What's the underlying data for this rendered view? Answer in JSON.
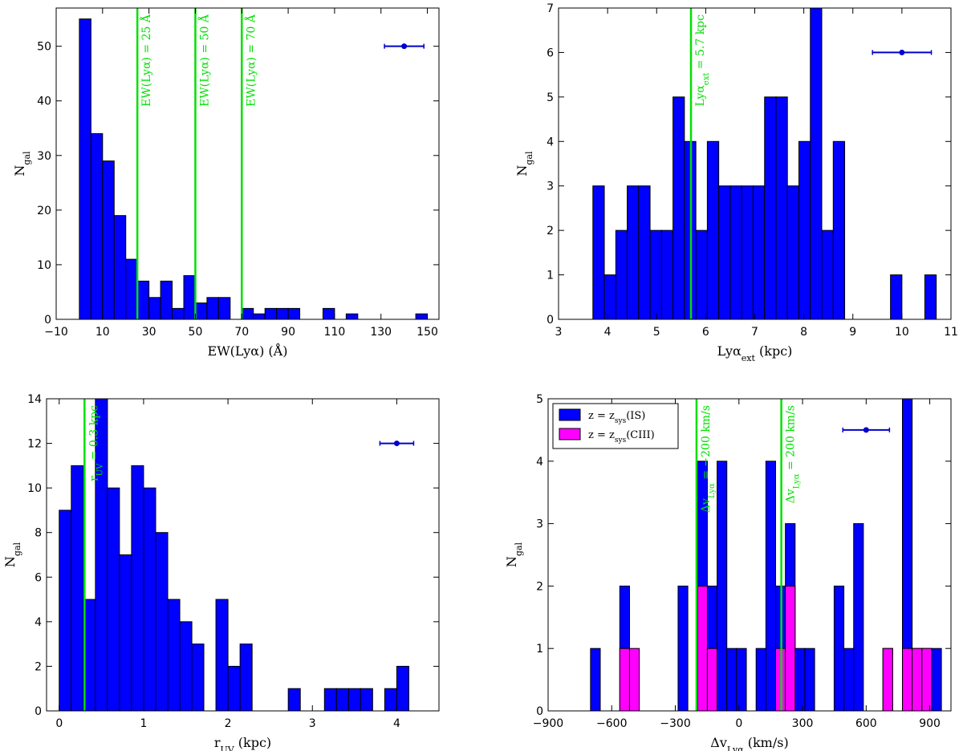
{
  "colors": {
    "bar": "#0000ff",
    "bar_alt": "#ff00ff",
    "vline": "#00e000",
    "errorbar": "#0000cc",
    "edge": "#000000"
  },
  "chart_data": [
    {
      "id": "ew",
      "type": "bar",
      "xlabel": "EW(Lyα) (Å)",
      "ylabel": "N_gal",
      "xlim": [
        -10,
        155
      ],
      "ylim": [
        0,
        57
      ],
      "xticks": [
        -10,
        10,
        30,
        50,
        70,
        90,
        110,
        130,
        150
      ],
      "xtick_labels": [
        "−10",
        "10",
        "30",
        "50",
        "70",
        "90",
        "110",
        "130",
        "150"
      ],
      "yticks": [
        0,
        10,
        20,
        30,
        40,
        50
      ],
      "ytick_labels": [
        "0",
        "10",
        "20",
        "30",
        "40",
        "50"
      ],
      "bin_width": 5,
      "series": [
        {
          "bins": [
            {
              "x0": 0,
              "v": 55
            },
            {
              "x0": 5,
              "v": 34
            },
            {
              "x0": 10,
              "v": 29
            },
            {
              "x0": 15,
              "v": 19
            },
            {
              "x0": 20,
              "v": 11
            },
            {
              "x0": 25,
              "v": 7
            },
            {
              "x0": 30,
              "v": 4
            },
            {
              "x0": 35,
              "v": 7
            },
            {
              "x0": 40,
              "v": 2
            },
            {
              "x0": 45,
              "v": 8
            },
            {
              "x0": 50,
              "v": 3
            },
            {
              "x0": 55,
              "v": 4
            },
            {
              "x0": 60,
              "v": 4
            },
            {
              "x0": 70,
              "v": 2
            },
            {
              "x0": 75,
              "v": 1
            },
            {
              "x0": 80,
              "v": 2
            },
            {
              "x0": 85,
              "v": 2
            },
            {
              "x0": 90,
              "v": 2
            },
            {
              "x0": 105,
              "v": 2
            },
            {
              "x0": 115,
              "v": 1
            },
            {
              "x0": 145,
              "v": 1
            }
          ]
        }
      ],
      "vlines": [
        {
          "x": 25,
          "label": "EW(Lyα) = 25 Å"
        },
        {
          "x": 50,
          "label": "EW(Lyα) = 50 Å"
        },
        {
          "x": 70,
          "label": "EW(Lyα) = 70 Å"
        }
      ],
      "errorbar": {
        "x": 140,
        "y": 50,
        "xerr": 8.5
      }
    },
    {
      "id": "ext",
      "type": "bar",
      "xlabel": "Lyα_ext (kpc)",
      "ylabel": "N_gal",
      "xlim": [
        3,
        11
      ],
      "ylim": [
        0,
        7
      ],
      "xticks": [
        3,
        4,
        5,
        6,
        7,
        8,
        9,
        10,
        11
      ],
      "xtick_labels": [
        "3",
        "4",
        "5",
        "6",
        "7",
        "8",
        "9",
        "10",
        "11"
      ],
      "yticks": [
        0,
        1,
        2,
        3,
        4,
        5,
        6,
        7
      ],
      "ytick_labels": [
        "0",
        "1",
        "2",
        "3",
        "4",
        "5",
        "6",
        "7"
      ],
      "bin_width": 0.233,
      "series": [
        {
          "bins": [
            {
              "x0": 3.7,
              "v": 3
            },
            {
              "x0": 3.933,
              "v": 1
            },
            {
              "x0": 4.167,
              "v": 2
            },
            {
              "x0": 4.4,
              "v": 3
            },
            {
              "x0": 4.633,
              "v": 3
            },
            {
              "x0": 4.867,
              "v": 2
            },
            {
              "x0": 5.1,
              "v": 2
            },
            {
              "x0": 5.333,
              "v": 5
            },
            {
              "x0": 5.567,
              "v": 4
            },
            {
              "x0": 5.8,
              "v": 2
            },
            {
              "x0": 6.033,
              "v": 4
            },
            {
              "x0": 6.267,
              "v": 3
            },
            {
              "x0": 6.5,
              "v": 3
            },
            {
              "x0": 6.733,
              "v": 3
            },
            {
              "x0": 6.967,
              "v": 3
            },
            {
              "x0": 7.2,
              "v": 5
            },
            {
              "x0": 7.433,
              "v": 5
            },
            {
              "x0": 7.667,
              "v": 3
            },
            {
              "x0": 7.9,
              "v": 4
            },
            {
              "x0": 8.133,
              "v": 7
            },
            {
              "x0": 8.367,
              "v": 2
            },
            {
              "x0": 8.6,
              "v": 4
            },
            {
              "x0": 9.767,
              "v": 1
            },
            {
              "x0": 10.467,
              "v": 1
            }
          ]
        }
      ],
      "vlines": [
        {
          "x": 5.7,
          "label": "Lyα_ext = 5.7 kpc"
        }
      ],
      "errorbar": {
        "x": 10,
        "y": 6,
        "xerr": 0.6
      }
    },
    {
      "id": "ruv",
      "type": "bar",
      "xlabel": "r_UV (kpc)",
      "ylabel": "N_gal",
      "xlim": [
        -0.15,
        4.5
      ],
      "ylim": [
        0,
        14
      ],
      "xticks": [
        0,
        1,
        2,
        3,
        4
      ],
      "xtick_labels": [
        "0",
        "1",
        "2",
        "3",
        "4"
      ],
      "yticks": [
        0,
        2,
        4,
        6,
        8,
        10,
        12,
        14
      ],
      "ytick_labels": [
        "0",
        "2",
        "4",
        "6",
        "8",
        "10",
        "12",
        "14"
      ],
      "bin_width": 0.143,
      "series": [
        {
          "bins": [
            {
              "x0": 0,
              "v": 9
            },
            {
              "x0": 0.143,
              "v": 11
            },
            {
              "x0": 0.286,
              "v": 5
            },
            {
              "x0": 0.429,
              "v": 14
            },
            {
              "x0": 0.571,
              "v": 10
            },
            {
              "x0": 0.714,
              "v": 7
            },
            {
              "x0": 0.857,
              "v": 11
            },
            {
              "x0": 1.0,
              "v": 10
            },
            {
              "x0": 1.143,
              "v": 8
            },
            {
              "x0": 1.286,
              "v": 5
            },
            {
              "x0": 1.429,
              "v": 4
            },
            {
              "x0": 1.571,
              "v": 3
            },
            {
              "x0": 1.857,
              "v": 5
            },
            {
              "x0": 2.0,
              "v": 2
            },
            {
              "x0": 2.143,
              "v": 3
            },
            {
              "x0": 2.714,
              "v": 1
            },
            {
              "x0": 3.143,
              "v": 1
            },
            {
              "x0": 3.286,
              "v": 1
            },
            {
              "x0": 3.429,
              "v": 1
            },
            {
              "x0": 3.571,
              "v": 1
            },
            {
              "x0": 3.857,
              "v": 1
            },
            {
              "x0": 4.0,
              "v": 2
            }
          ]
        }
      ],
      "vlines": [
        {
          "x": 0.3,
          "label": "r_UV = 0.3 kpc"
        }
      ],
      "errorbar": {
        "x": 4.0,
        "y": 12,
        "xerr": 0.2
      }
    },
    {
      "id": "dv",
      "type": "bar",
      "xlabel": "Δv_Lyα (km/s)",
      "ylabel": "N_gal",
      "xlim": [
        -900,
        1000
      ],
      "ylim": [
        0,
        5
      ],
      "xticks": [
        -900,
        -600,
        -300,
        0,
        300,
        600,
        900
      ],
      "xtick_labels": [
        "−900",
        "−600",
        "−300",
        "0",
        "300",
        "600",
        "900"
      ],
      "yticks": [
        0,
        1,
        2,
        3,
        4,
        5
      ],
      "ytick_labels": [
        "0",
        "1",
        "2",
        "3",
        "4",
        "5"
      ],
      "bin_width": 46,
      "series": [
        {
          "name": "z = z_sys(IS)",
          "color_key": "bar",
          "bins": [
            {
              "x0": -700,
              "v": 1
            },
            {
              "x0": -562,
              "v": 2
            },
            {
              "x0": -287,
              "v": 2
            },
            {
              "x0": -195,
              "v": 4
            },
            {
              "x0": -149,
              "v": 2
            },
            {
              "x0": -103,
              "v": 4
            },
            {
              "x0": -57,
              "v": 1
            },
            {
              "x0": -11,
              "v": 1
            },
            {
              "x0": 81,
              "v": 1
            },
            {
              "x0": 127,
              "v": 4
            },
            {
              "x0": 173,
              "v": 2
            },
            {
              "x0": 219,
              "v": 3
            },
            {
              "x0": 265,
              "v": 1
            },
            {
              "x0": 311,
              "v": 1
            },
            {
              "x0": 449,
              "v": 2
            },
            {
              "x0": 495,
              "v": 1
            },
            {
              "x0": 541,
              "v": 3
            },
            {
              "x0": 679,
              "v": 1
            },
            {
              "x0": 771,
              "v": 5
            },
            {
              "x0": 817,
              "v": 1
            },
            {
              "x0": 863,
              "v": 1
            },
            {
              "x0": 909,
              "v": 1
            }
          ]
        },
        {
          "name": "z = z_sys(CIII)",
          "color_key": "bar_alt",
          "bins": [
            {
              "x0": -562,
              "v": 1
            },
            {
              "x0": -516,
              "v": 1
            },
            {
              "x0": -195,
              "v": 2
            },
            {
              "x0": -149,
              "v": 1
            },
            {
              "x0": 173,
              "v": 1
            },
            {
              "x0": 219,
              "v": 2
            },
            {
              "x0": 679,
              "v": 1
            },
            {
              "x0": 771,
              "v": 1
            },
            {
              "x0": 817,
              "v": 1
            },
            {
              "x0": 863,
              "v": 1
            }
          ]
        }
      ],
      "vlines": [
        {
          "x": -200,
          "label": "Δv_Lyα = −200 km/s"
        },
        {
          "x": 200,
          "label": "Δv_Lyα = 200 km/s"
        }
      ],
      "errorbar": {
        "x": 600,
        "y": 4.5,
        "xerr": 110
      },
      "legend": {
        "position": "upper-left"
      }
    }
  ]
}
